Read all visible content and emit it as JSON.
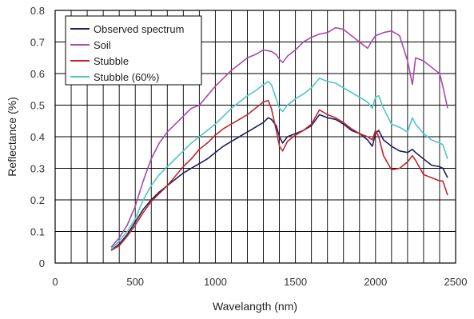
{
  "chart_data": {
    "type": "line",
    "title": "",
    "xlabel": "Wavelangth (nm)",
    "ylabel": "Reflectance (%)",
    "xlim": [
      0,
      2500
    ],
    "ylim": [
      0,
      0.8
    ],
    "x_ticks": [
      0,
      500,
      1000,
      1500,
      2000,
      2500
    ],
    "x_tick_labels": [
      "0",
      "500",
      "1000",
      "1500",
      "2000",
      "2500"
    ],
    "y_ticks": [
      0,
      0.1,
      0.2,
      0.3,
      0.4,
      0.5,
      0.6,
      0.7,
      0.8
    ],
    "y_tick_labels": [
      "0",
      "0.1",
      "0.2",
      "0.3",
      "0.4",
      "0.5",
      "0.6",
      "0.7",
      "0.8"
    ],
    "grid": true,
    "legend_position": "top-left",
    "series": [
      {
        "name": "Observed spectrum",
        "color": "#1f1f5e",
        "x": [
          350,
          400,
          450,
          500,
          550,
          600,
          650,
          700,
          750,
          800,
          850,
          900,
          950,
          1000,
          1050,
          1100,
          1150,
          1200,
          1250,
          1300,
          1330,
          1350,
          1380,
          1400,
          1420,
          1450,
          1500,
          1550,
          1600,
          1650,
          1700,
          1750,
          1800,
          1850,
          1900,
          1950,
          1980,
          2000,
          2020,
          2050,
          2100,
          2150,
          2200,
          2230,
          2250,
          2300,
          2350,
          2400,
          2420,
          2450
        ],
        "y": [
          0.04,
          0.06,
          0.09,
          0.13,
          0.17,
          0.2,
          0.225,
          0.245,
          0.265,
          0.285,
          0.3,
          0.315,
          0.33,
          0.35,
          0.37,
          0.385,
          0.4,
          0.415,
          0.43,
          0.445,
          0.46,
          0.455,
          0.435,
          0.4,
          0.38,
          0.4,
          0.41,
          0.42,
          0.435,
          0.47,
          0.46,
          0.455,
          0.44,
          0.42,
          0.41,
          0.39,
          0.37,
          0.41,
          0.42,
          0.39,
          0.37,
          0.355,
          0.35,
          0.36,
          0.35,
          0.33,
          0.31,
          0.305,
          0.3,
          0.27
        ]
      },
      {
        "name": "Soil",
        "color": "#a94aa9",
        "x": [
          350,
          400,
          450,
          500,
          550,
          600,
          650,
          700,
          750,
          800,
          850,
          900,
          950,
          1000,
          1050,
          1100,
          1150,
          1200,
          1250,
          1300,
          1350,
          1380,
          1400,
          1420,
          1450,
          1500,
          1550,
          1600,
          1650,
          1700,
          1750,
          1800,
          1850,
          1900,
          1950,
          1980,
          2000,
          2050,
          2100,
          2150,
          2200,
          2230,
          2250,
          2300,
          2350,
          2400,
          2420,
          2450
        ],
        "y": [
          0.05,
          0.08,
          0.12,
          0.18,
          0.26,
          0.33,
          0.38,
          0.415,
          0.44,
          0.465,
          0.49,
          0.5,
          0.53,
          0.56,
          0.585,
          0.61,
          0.63,
          0.65,
          0.66,
          0.675,
          0.67,
          0.66,
          0.645,
          0.635,
          0.655,
          0.675,
          0.7,
          0.715,
          0.725,
          0.73,
          0.745,
          0.74,
          0.72,
          0.7,
          0.68,
          0.705,
          0.72,
          0.73,
          0.735,
          0.72,
          0.64,
          0.565,
          0.65,
          0.64,
          0.62,
          0.6,
          0.56,
          0.49
        ]
      },
      {
        "name": "Stubble",
        "color": "#c0272d",
        "x": [
          350,
          400,
          450,
          500,
          550,
          600,
          650,
          700,
          750,
          800,
          850,
          900,
          950,
          1000,
          1050,
          1100,
          1150,
          1200,
          1250,
          1300,
          1330,
          1350,
          1380,
          1400,
          1420,
          1450,
          1500,
          1550,
          1600,
          1650,
          1700,
          1750,
          1800,
          1850,
          1900,
          1950,
          1980,
          2000,
          2020,
          2050,
          2100,
          2150,
          2200,
          2230,
          2250,
          2300,
          2350,
          2400,
          2420,
          2450
        ],
        "y": [
          0.04,
          0.055,
          0.085,
          0.12,
          0.16,
          0.195,
          0.22,
          0.245,
          0.275,
          0.305,
          0.33,
          0.36,
          0.38,
          0.405,
          0.425,
          0.44,
          0.455,
          0.47,
          0.49,
          0.51,
          0.515,
          0.49,
          0.42,
          0.37,
          0.355,
          0.385,
          0.405,
          0.42,
          0.44,
          0.485,
          0.47,
          0.46,
          0.445,
          0.425,
          0.41,
          0.4,
          0.39,
          0.42,
          0.4,
          0.34,
          0.295,
          0.3,
          0.32,
          0.34,
          0.325,
          0.28,
          0.27,
          0.26,
          0.26,
          0.215
        ]
      },
      {
        "name": "Stubble (60%)",
        "color": "#4fc6c8",
        "x": [
          350,
          400,
          450,
          500,
          550,
          600,
          650,
          700,
          750,
          800,
          850,
          900,
          950,
          1000,
          1050,
          1100,
          1150,
          1200,
          1250,
          1300,
          1330,
          1350,
          1380,
          1400,
          1420,
          1450,
          1500,
          1550,
          1600,
          1650,
          1700,
          1750,
          1800,
          1850,
          1900,
          1950,
          1980,
          2000,
          2020,
          2050,
          2100,
          2150,
          2200,
          2230,
          2250,
          2300,
          2350,
          2400,
          2420,
          2450
        ],
        "y": [
          0.045,
          0.07,
          0.1,
          0.14,
          0.2,
          0.245,
          0.28,
          0.305,
          0.33,
          0.355,
          0.38,
          0.4,
          0.42,
          0.44,
          0.465,
          0.49,
          0.51,
          0.53,
          0.545,
          0.565,
          0.575,
          0.565,
          0.52,
          0.49,
          0.48,
          0.5,
          0.52,
          0.535,
          0.555,
          0.585,
          0.575,
          0.57,
          0.555,
          0.54,
          0.525,
          0.51,
          0.49,
          0.525,
          0.53,
          0.49,
          0.44,
          0.43,
          0.415,
          0.46,
          0.44,
          0.41,
          0.39,
          0.38,
          0.375,
          0.33
        ]
      }
    ]
  }
}
